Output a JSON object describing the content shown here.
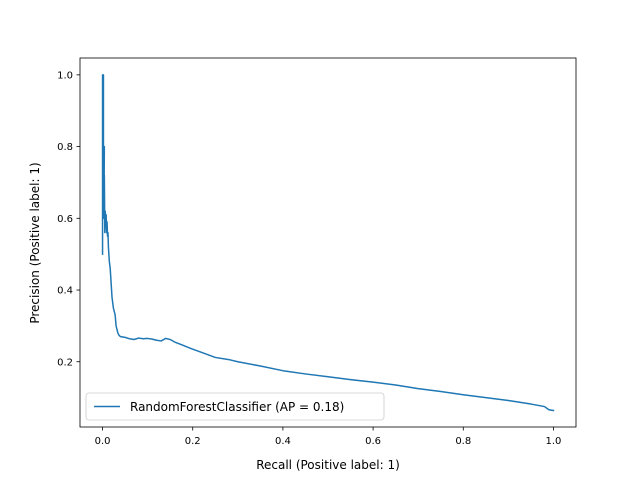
{
  "chart_data": {
    "type": "line",
    "title": "",
    "xlabel": "Recall (Positive label: 1)",
    "ylabel": "Precision (Positive label: 1)",
    "xlim": [
      -0.05,
      1.05
    ],
    "ylim": [
      0.018,
      1.047
    ],
    "grid": false,
    "legend_position": "lower-left",
    "x_ticks": [
      0.0,
      0.2,
      0.4,
      0.6,
      0.8,
      1.0
    ],
    "x_tick_labels": [
      "0.0",
      "0.2",
      "0.4",
      "0.6",
      "0.8",
      "1.0"
    ],
    "y_ticks": [
      0.2,
      0.4,
      0.6,
      0.8,
      1.0
    ],
    "y_tick_labels": [
      "0.2",
      "0.4",
      "0.6",
      "0.8",
      "1.0"
    ],
    "series": [
      {
        "name": "RandomForestClassifier (AP = 0.18)",
        "color": "#1f77b4",
        "x": [
          0.0,
          0.0,
          0.002,
          0.002,
          0.001,
          0.002,
          0.004,
          0.003,
          0.004,
          0.005,
          0.006,
          0.007,
          0.008,
          0.009,
          0.01,
          0.011,
          0.012,
          0.013,
          0.015,
          0.017,
          0.019,
          0.021,
          0.023,
          0.024,
          0.026,
          0.028,
          0.03,
          0.032,
          0.034,
          0.036,
          0.038,
          0.04,
          0.05,
          0.06,
          0.07,
          0.08,
          0.09,
          0.1,
          0.11,
          0.12,
          0.13,
          0.14,
          0.15,
          0.16,
          0.17,
          0.18,
          0.19,
          0.2,
          0.22,
          0.25,
          0.28,
          0.3,
          0.35,
          0.4,
          0.45,
          0.5,
          0.55,
          0.6,
          0.65,
          0.7,
          0.75,
          0.8,
          0.85,
          0.9,
          0.95,
          0.98,
          0.99,
          1.0
        ],
        "y": [
          0.5,
          1.0,
          1.0,
          0.6,
          0.83,
          0.65,
          0.8,
          0.6,
          0.72,
          0.56,
          0.62,
          0.58,
          0.61,
          0.56,
          0.59,
          0.55,
          0.56,
          0.52,
          0.48,
          0.46,
          0.42,
          0.38,
          0.36,
          0.35,
          0.34,
          0.33,
          0.3,
          0.29,
          0.28,
          0.275,
          0.272,
          0.27,
          0.268,
          0.264,
          0.262,
          0.266,
          0.264,
          0.265,
          0.263,
          0.26,
          0.258,
          0.265,
          0.262,
          0.255,
          0.25,
          0.245,
          0.24,
          0.235,
          0.226,
          0.212,
          0.206,
          0.2,
          0.188,
          0.175,
          0.166,
          0.158,
          0.15,
          0.143,
          0.135,
          0.125,
          0.117,
          0.108,
          0.1,
          0.092,
          0.082,
          0.075,
          0.066,
          0.064
        ]
      }
    ]
  }
}
